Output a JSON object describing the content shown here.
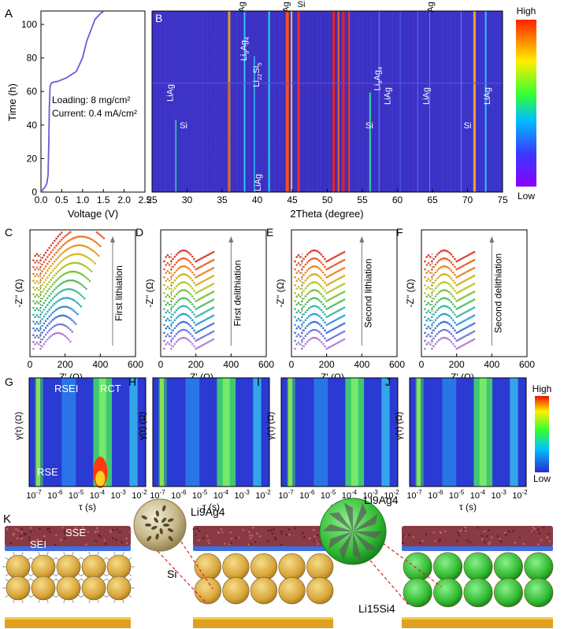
{
  "panels": {
    "A": {
      "letter": "A",
      "xlabel": "Voltage (V)",
      "ylabel": "Time (h)",
      "xticks": [
        "0.0",
        "0.5",
        "1.0",
        "1.5",
        "2.0",
        "2.5"
      ],
      "yticks": [
        "0",
        "20",
        "40",
        "60",
        "80",
        "100"
      ],
      "loading": "Loading: 8 mg/cm²",
      "current": "Current: 0.4 mA/cm²",
      "curve_color": "#6b5bd6",
      "chart_data": {
        "type": "line",
        "x": [
          0.01,
          0.03,
          0.06,
          0.1,
          0.14,
          0.17,
          0.19,
          0.2,
          0.22,
          0.25,
          0.3,
          0.4,
          0.6,
          0.85,
          1.0,
          1.1,
          1.3,
          1.45,
          1.5
        ],
        "y": [
          0,
          1,
          2,
          3,
          5,
          10,
          30,
          50,
          63,
          65,
          65.5,
          66,
          68,
          72,
          80,
          90,
          103,
          107,
          107.5
        ],
        "xlim": [
          0,
          2.5
        ],
        "ylim": [
          0,
          108
        ]
      }
    },
    "B": {
      "letter": "B",
      "xlabel": "2Theta (degree)",
      "xticks": [
        "25",
        "30",
        "35",
        "40",
        "45",
        "50",
        "55",
        "60",
        "65",
        "70",
        "75"
      ],
      "top_labels": [
        "Ag",
        "Ag",
        "Si",
        "Ag"
      ],
      "phase_labels": [
        "LiAg",
        "Si",
        "Li9Ag4",
        "Li22Si5",
        "LiAg",
        "Si",
        "Li9Ag4",
        "LiAg",
        "LiAg",
        "Si",
        "LiAg"
      ],
      "colorbar": {
        "high": "High",
        "low": "Low"
      }
    },
    "C": {
      "letter": "C",
      "xlabel": "Z' (Ω)",
      "ylabel": "-Z'' (Ω)",
      "arrow_label": "First lithiation",
      "xticks": [
        "0",
        "200",
        "400",
        "600"
      ]
    },
    "D": {
      "letter": "D",
      "xlabel": "Z' (Ω)",
      "ylabel": "-Z'' (Ω)",
      "arrow_label": "First delithiation",
      "xticks": [
        "0",
        "200",
        "400",
        "600"
      ]
    },
    "E": {
      "letter": "E",
      "xlabel": "Z' (Ω)",
      "ylabel": "-Z'' (Ω)",
      "arrow_label": "Second lithiation",
      "xticks": [
        "0",
        "200",
        "400",
        "600"
      ]
    },
    "F": {
      "letter": "F",
      "xlabel": "Z' (Ω)",
      "ylabel": "-Z'' (Ω)",
      "arrow_label": "Second delithiation",
      "xticks": [
        "0",
        "200",
        "400",
        "600"
      ]
    },
    "G": {
      "letter": "G",
      "ylabel": "γ(τ) (Ω)",
      "xlabel": "τ (s)",
      "rsei": "RSEI",
      "rct": "RCT",
      "rse": "RSE",
      "xticks": [
        "10-7",
        "10-6",
        "10-5",
        "10-4",
        "10-3",
        "10-2"
      ]
    },
    "H": {
      "letter": "H",
      "ylabel": "γ(τ) (Ω)",
      "xlabel": "τ (s)",
      "xticks": [
        "10-7",
        "10-6",
        "10-5",
        "10-4",
        "10-3",
        "10-2"
      ]
    },
    "I": {
      "letter": "I",
      "ylabel": "γ(τ) (Ω)",
      "xlabel": "τ (s)",
      "xticks": [
        "10-7",
        "10-6",
        "10-5",
        "10-4",
        "10-3",
        "10-2"
      ]
    },
    "J": {
      "letter": "J",
      "ylabel": "γ(τ) (Ω)",
      "xlabel": "τ (s)",
      "xticks": [
        "10-7",
        "10-6",
        "10-5",
        "10-4",
        "10-3",
        "10-2"
      ]
    },
    "K": {
      "letter": "K",
      "sse": "SSE",
      "sei": "SEI",
      "li9ag4": "Li9Ag4",
      "si": "Si",
      "li15si4": "Li15Si4"
    }
  },
  "drt_colorbar": {
    "high": "High",
    "low": "Low"
  },
  "colors": {
    "eis_top": "#b07ad8",
    "eis_bottom": "#d93a2b",
    "xrd_bg": "#3b2fc0"
  }
}
